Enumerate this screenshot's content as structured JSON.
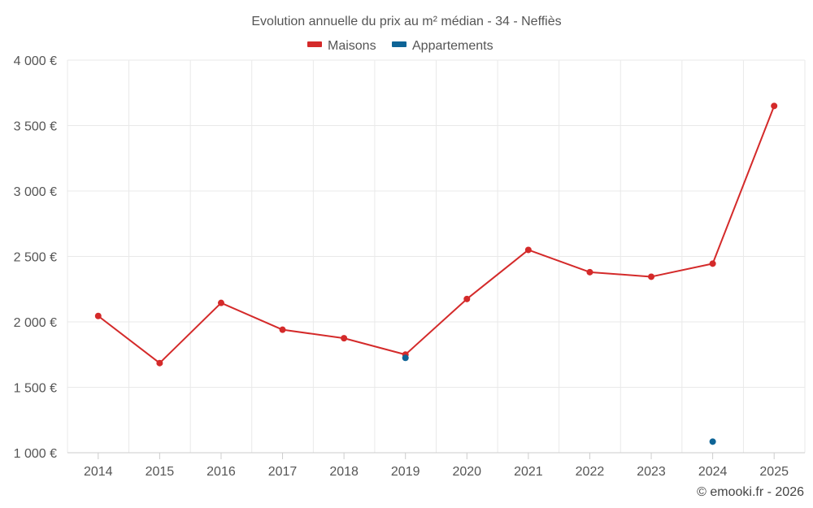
{
  "chart_data": {
    "type": "line",
    "title": "Evolution annuelle du prix au m² médian - 34 - Neffiès",
    "categories": [
      "2014",
      "2015",
      "2016",
      "2017",
      "2018",
      "2019",
      "2020",
      "2021",
      "2022",
      "2023",
      "2024",
      "2025"
    ],
    "ylim": [
      1000,
      4000
    ],
    "yticks": [
      1000,
      1500,
      2000,
      2500,
      3000,
      3500,
      4000
    ],
    "ytick_labels": [
      "1 000 €",
      "1 500 €",
      "2 000 €",
      "2 500 €",
      "3 000 €",
      "3 500 €",
      "4 000 €"
    ],
    "legend_position": "top-center",
    "grid": true,
    "series": [
      {
        "name": "Maisons",
        "color": "#d42a2a",
        "values": [
          2045,
          1685,
          2145,
          1940,
          1875,
          1750,
          2175,
          2550,
          2380,
          2345,
          2445,
          3650
        ]
      },
      {
        "name": "Appartements",
        "color": "#0e6496",
        "values": [
          null,
          null,
          null,
          null,
          null,
          1725,
          null,
          null,
          null,
          null,
          1085,
          null
        ]
      }
    ]
  },
  "credit": "© emooki.fr - 2026"
}
